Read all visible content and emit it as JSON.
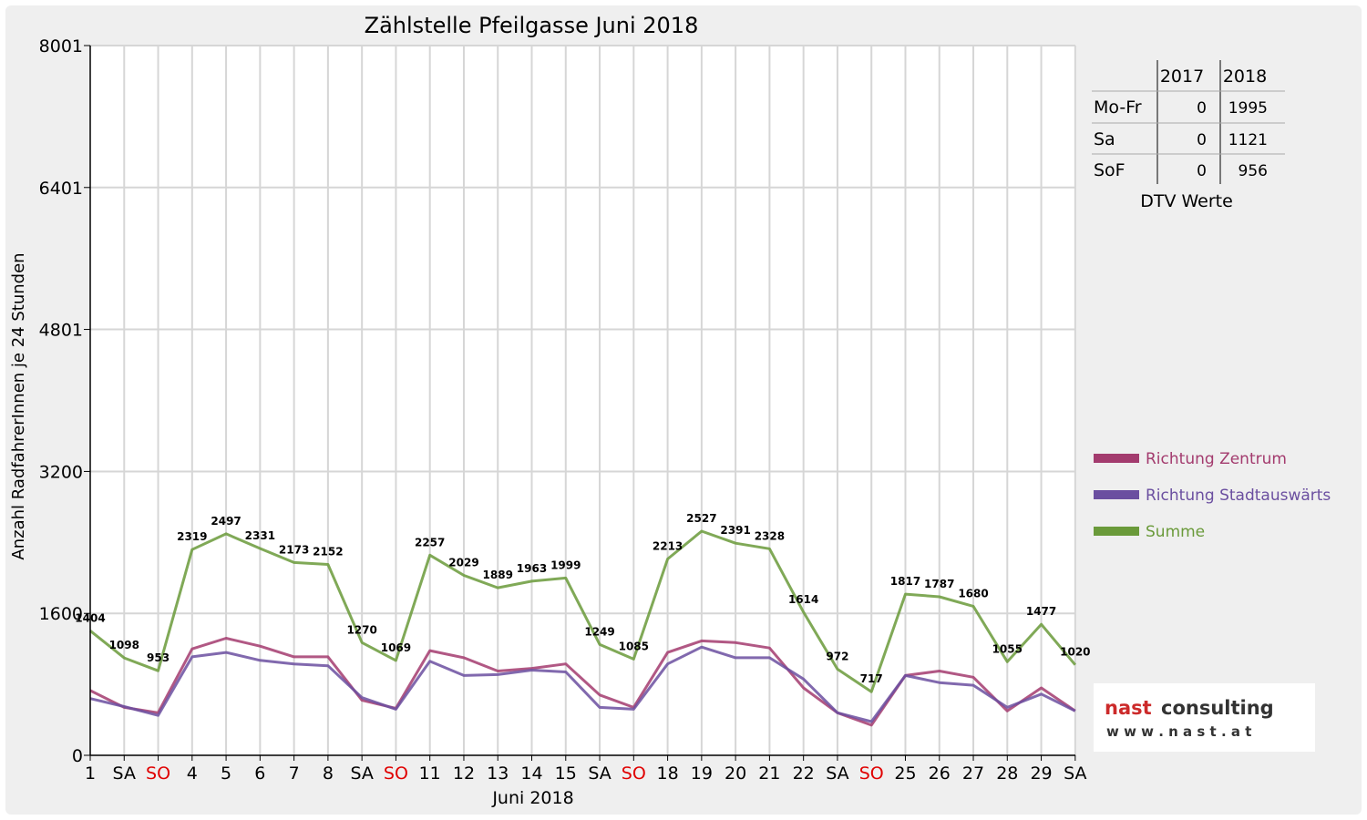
{
  "chart_data": {
    "type": "line",
    "title": "Zählstelle Pfeilgasse Juni 2018",
    "xlabel": "Juni 2018",
    "ylabel": "Anzahl RadfahrerInnen je 24 Stunden",
    "ylim": [
      0,
      8001
    ],
    "yticks": [
      "0",
      "1600",
      "3200",
      "4801",
      "6401",
      "8001"
    ],
    "ytick_values": [
      0,
      1600,
      3200,
      4801,
      6401,
      8001
    ],
    "grid": true,
    "categories": [
      "1",
      "SA",
      "SO",
      "4",
      "5",
      "6",
      "7",
      "8",
      "SA",
      "SO",
      "11",
      "12",
      "13",
      "14",
      "15",
      "SA",
      "SO",
      "18",
      "19",
      "20",
      "21",
      "22",
      "SA",
      "SO",
      "25",
      "26",
      "27",
      "28",
      "29",
      "SA"
    ],
    "sunday_indices": [
      2,
      9,
      16,
      23
    ],
    "series": [
      {
        "name": "Richtung Zentrum",
        "color": "#a33b6e",
        "values": [
          730,
          540,
          480,
          1200,
          1320,
          1230,
          1110,
          1110,
          620,
          530,
          1180,
          1100,
          950,
          980,
          1030,
          680,
          540,
          1160,
          1290,
          1270,
          1210,
          760,
          480,
          340,
          900,
          950,
          880,
          500,
          760,
          500
        ]
      },
      {
        "name": "Richtung Stadtauswärts",
        "color": "#6b4fa0",
        "values": [
          640,
          550,
          450,
          1110,
          1160,
          1070,
          1030,
          1010,
          650,
          520,
          1060,
          900,
          910,
          960,
          940,
          540,
          520,
          1030,
          1220,
          1100,
          1100,
          860,
          480,
          380,
          900,
          820,
          790,
          540,
          690,
          500
        ]
      },
      {
        "name": "Summe",
        "color": "#6a9a3a",
        "values": [
          1404,
          1098,
          953,
          2319,
          2497,
          2331,
          2173,
          2152,
          1270,
          1069,
          2257,
          2029,
          1889,
          1963,
          1999,
          1249,
          1085,
          2213,
          2527,
          2391,
          2328,
          1614,
          972,
          717,
          1817,
          1787,
          1680,
          1055,
          1477,
          1020
        ]
      }
    ],
    "labels": [
      "1404",
      "1098",
      "953",
      "2319",
      "2497",
      "2331",
      "2173",
      "2152",
      "1270",
      "1069",
      "2257",
      "2029",
      "1889",
      "1963",
      "1999",
      "1249",
      "1085",
      "2213",
      "2527",
      "2391",
      "2328",
      "1614",
      "972",
      "717",
      "1817",
      "1787",
      "1680",
      "1055",
      "1477",
      "1020"
    ],
    "legend_position": "right"
  },
  "dtv_table": {
    "headers": [
      "",
      "2017",
      "2018"
    ],
    "rows": [
      {
        "label": "Mo-Fr",
        "v2017": "0",
        "v2018": "1995"
      },
      {
        "label": "Sa",
        "v2017": "0",
        "v2018": "1121"
      },
      {
        "label": "SoF",
        "v2017": "0",
        "v2018": "956"
      }
    ],
    "caption": "DTV Werte"
  },
  "logo": {
    "line1_a": "nast",
    "line1_b": "consulting",
    "line2": "w w w . n a s t . a t"
  }
}
